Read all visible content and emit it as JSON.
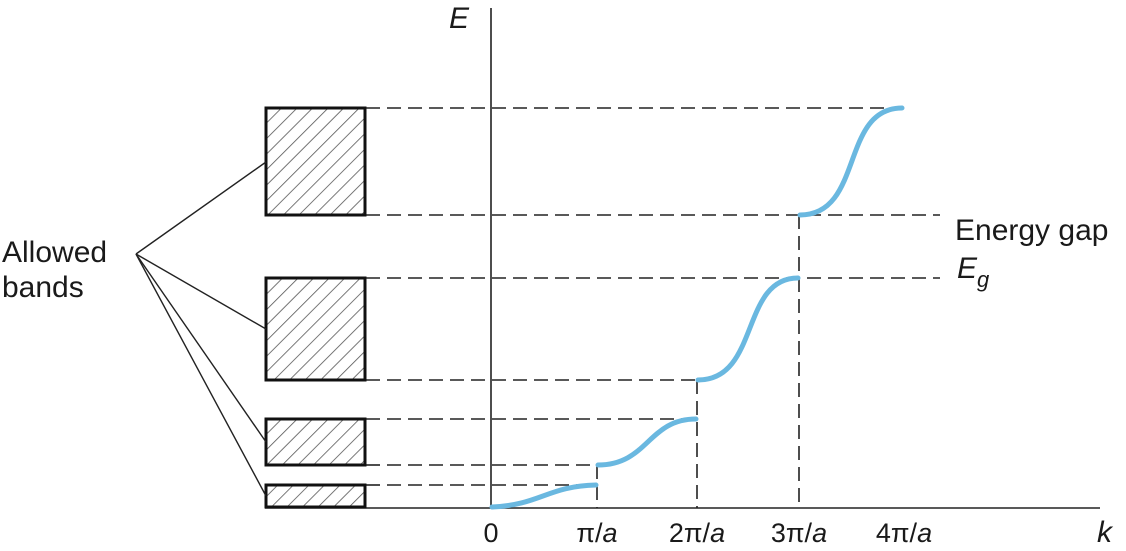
{
  "axes": {
    "y_label": "E",
    "x_label": "k",
    "x_ticks": [
      {
        "base": "0",
        "sub": ""
      },
      {
        "base": "π/",
        "sub": "a"
      },
      {
        "base": "2π/",
        "sub": "a"
      },
      {
        "base": "3π/",
        "sub": "a"
      },
      {
        "base": "4π/",
        "sub": "a"
      }
    ]
  },
  "labels": {
    "allowed_line1": "Allowed",
    "allowed_line2": "bands",
    "energy_gap": "Energy gap",
    "eg_base": "E",
    "eg_sub": "g"
  },
  "colors": {
    "curve": "#6ab8e0",
    "hatch": "#555555"
  }
}
